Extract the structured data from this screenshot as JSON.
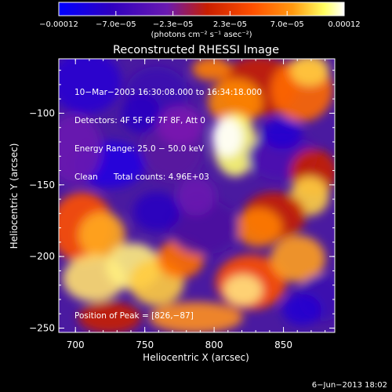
{
  "chart_data": {
    "type": "heatmap",
    "title": "Reconstructed RHESSI Image",
    "xlabel": "Heliocentric X (arcsec)",
    "ylabel": "Heliocentric Y (arcsec)",
    "xlim": [
      688,
      887
    ],
    "ylim": [
      -253,
      -62
    ],
    "x_ticks": [
      700,
      750,
      800,
      850
    ],
    "y_ticks": [
      -100,
      -150,
      -200,
      -250
    ],
    "x_tick_labels": [
      "700",
      "750",
      "800",
      "850"
    ],
    "y_tick_labels": [
      "−100",
      "−150",
      "−200",
      "−250"
    ],
    "colorbar": {
      "range": [
        -0.00012,
        0.00012
      ],
      "tick_labels": [
        "−0.00012",
        "−7.0e−05",
        "−2.3e−05",
        "2.3e−05",
        "7.0e−05",
        "0.00012"
      ],
      "unit_label": "(photons cm⁻² s⁻¹ asec⁻²)",
      "colors": [
        "#0000ff",
        "#2e00c0",
        "#6a1ab0",
        "#c81e00",
        "#ff8c00",
        "#ffff60",
        "#ffffff"
      ]
    },
    "peak": [
      826,
      -87
    ],
    "grid": false
  },
  "info_lines": [
    "10−Mar−2003 16:30:08.000 to 16:34:18.000",
    "Detectors: 4F 5F 6F 7F 8F, Att 0",
    "Energy Range: 25.0 − 50.0 keV",
    "Clean      Total counts: 4.96E+03"
  ],
  "peak_text": "Position of Peak = [826,−87]",
  "footer_date": "6−Jun−2013 18:02"
}
